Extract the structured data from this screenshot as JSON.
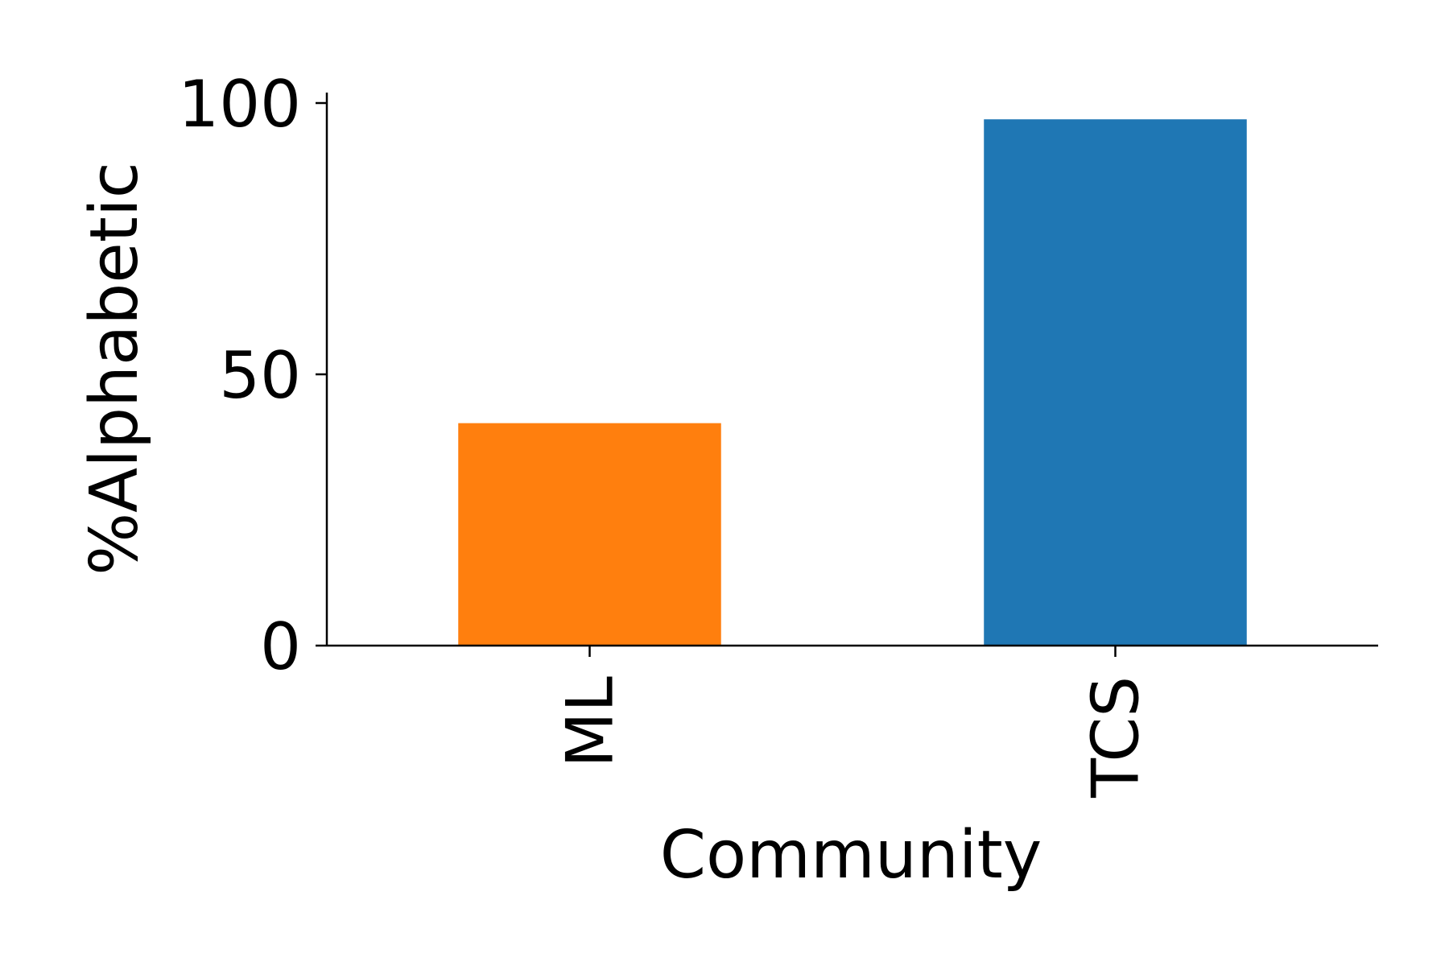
{
  "chart_data": {
    "type": "bar",
    "categories": [
      "ML",
      "TCS"
    ],
    "values": [
      41,
      97
    ],
    "colors": [
      "#ff7f0e",
      "#1f77b4"
    ],
    "xlabel": "Community",
    "ylabel": "%Alphabetic",
    "ylim": [
      0,
      100
    ],
    "yticks": [
      0,
      50,
      100
    ],
    "ytick_labels": [
      "0",
      "50",
      "100"
    ],
    "grid": false,
    "legend": null
  }
}
